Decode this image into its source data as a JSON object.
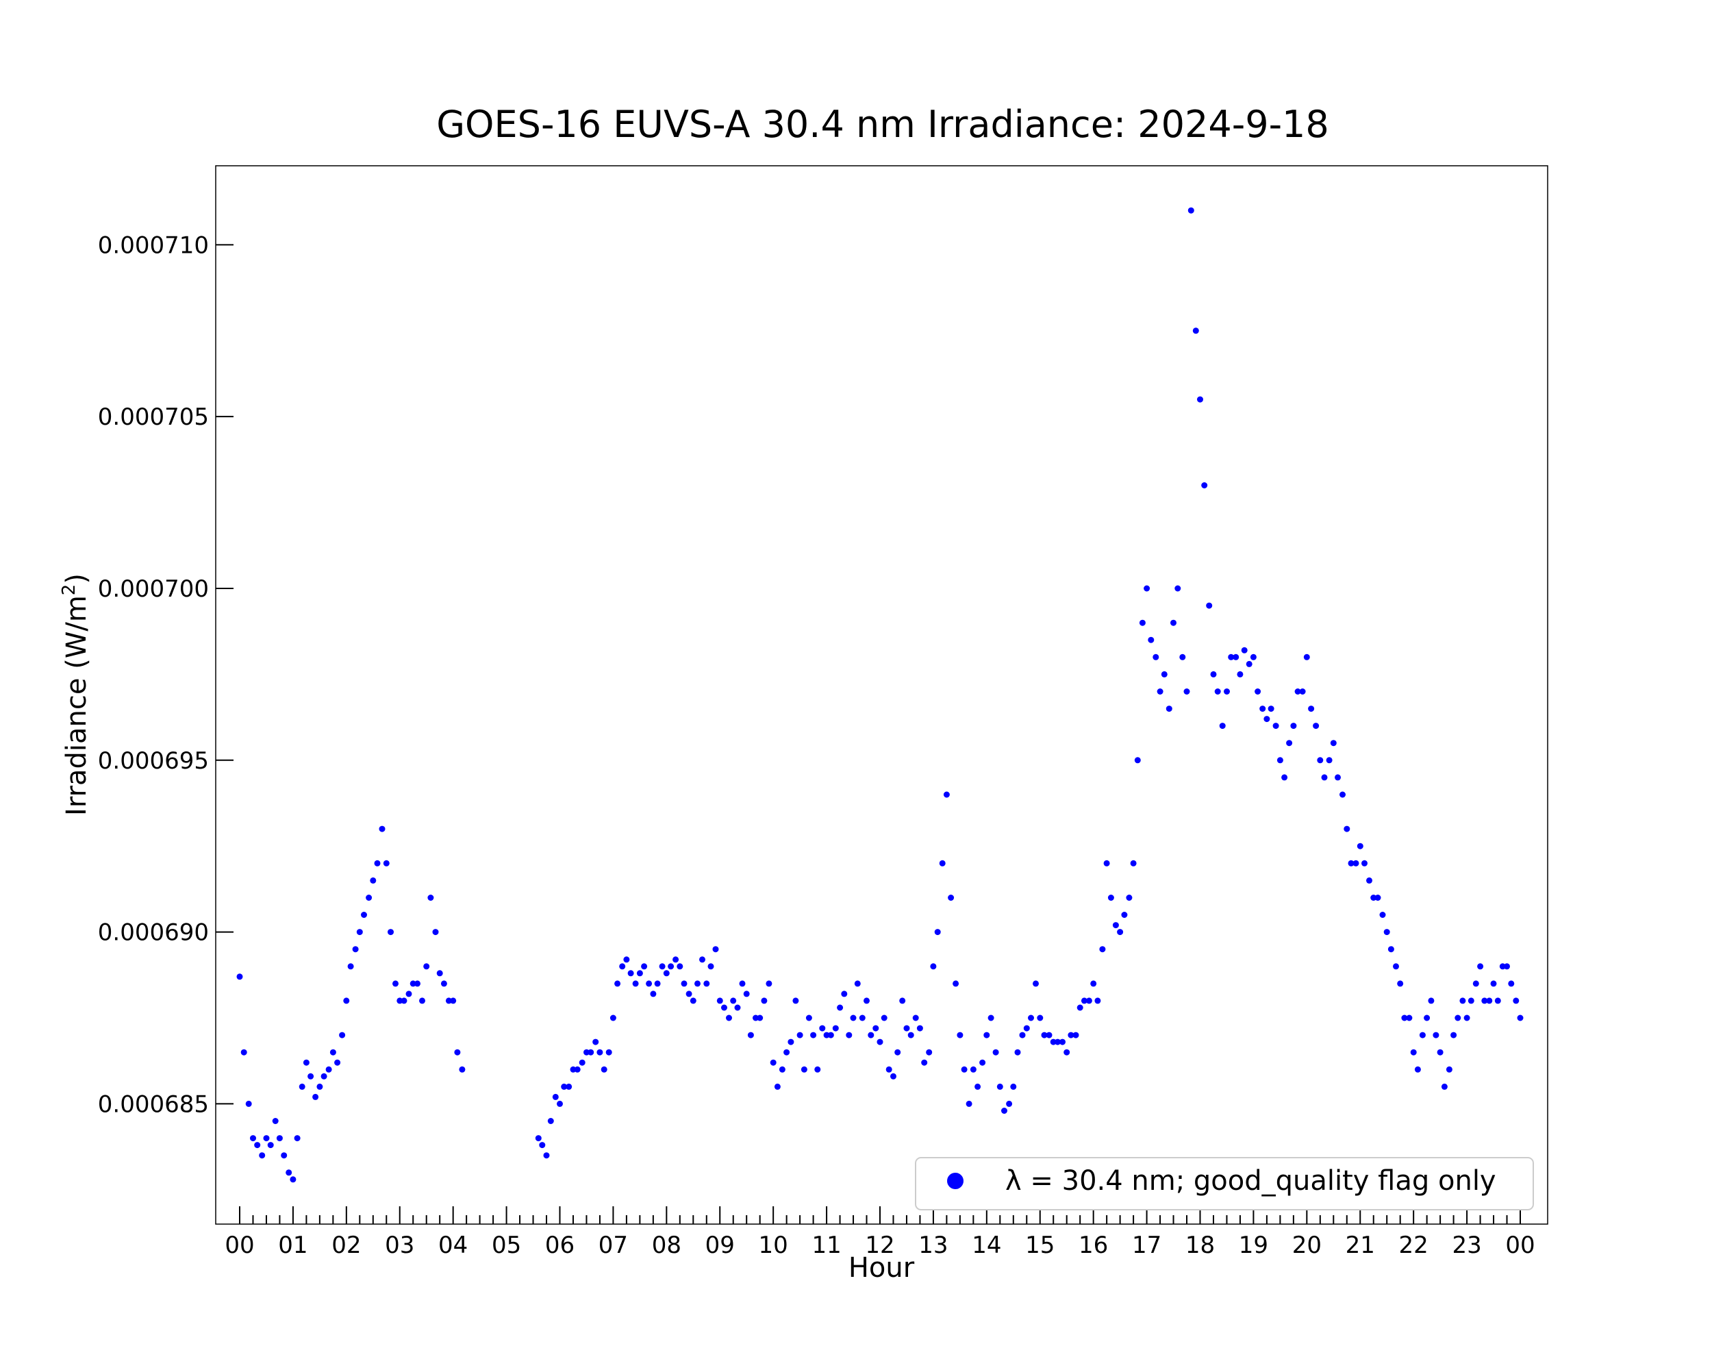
{
  "chart_data": {
    "type": "scatter",
    "title": "GOES-16 EUVS-A 30.4 nm Irradiance: 2024-9-18",
    "xlabel": "Hour",
    "ylabel": "Irradiance (W/m",
    "ylabel_sup": "2",
    "ylabel_close": ")",
    "xlim": [
      0,
      24
    ],
    "ylim": [
      0.0006815,
      0.0007123
    ],
    "x_ticks": [
      0,
      1,
      2,
      3,
      4,
      5,
      6,
      7,
      8,
      9,
      10,
      11,
      12,
      13,
      14,
      15,
      16,
      17,
      18,
      19,
      20,
      21,
      22,
      23,
      24
    ],
    "x_tick_labels": [
      "00",
      "01",
      "02",
      "03",
      "04",
      "05",
      "06",
      "07",
      "08",
      "09",
      "10",
      "11",
      "12",
      "13",
      "14",
      "15",
      "16",
      "17",
      "18",
      "19",
      "20",
      "21",
      "22",
      "23",
      "00"
    ],
    "y_ticks": [
      0.000685,
      0.00069,
      0.000695,
      0.0007,
      0.000705,
      0.00071
    ],
    "y_tick_labels": [
      "0.000685",
      "0.000690",
      "0.000695",
      "0.000700",
      "0.000705",
      "0.000710"
    ],
    "grid": false,
    "legend_position": "lower-right",
    "series": [
      {
        "name": "λ = 30.4 nm; good_quality flag only",
        "color": "#0000ff",
        "marker": "circle",
        "x": [
          0.0,
          0.08,
          0.17,
          0.25,
          0.33,
          0.42,
          0.5,
          0.58,
          0.67,
          0.75,
          0.83,
          0.92,
          1.0,
          1.08,
          1.17,
          1.25,
          1.33,
          1.42,
          1.5,
          1.58,
          1.67,
          1.75,
          1.83,
          1.92,
          2.0,
          2.08,
          2.17,
          2.25,
          2.33,
          2.42,
          2.5,
          2.58,
          2.67,
          2.75,
          2.83,
          2.92,
          3.0,
          3.08,
          3.17,
          3.25,
          3.33,
          3.42,
          3.5,
          3.58,
          3.67,
          3.75,
          3.83,
          3.92,
          4.0,
          4.08,
          4.17,
          5.6,
          5.67,
          5.75,
          5.83,
          5.92,
          6.0,
          6.08,
          6.17,
          6.25,
          6.33,
          6.42,
          6.5,
          6.58,
          6.67,
          6.75,
          6.83,
          6.92,
          7.0,
          7.08,
          7.17,
          7.25,
          7.33,
          7.42,
          7.5,
          7.58,
          7.67,
          7.75,
          7.83,
          7.92,
          8.0,
          8.08,
          8.17,
          8.25,
          8.33,
          8.42,
          8.5,
          8.58,
          8.67,
          8.75,
          8.83,
          8.92,
          9.0,
          9.08,
          9.17,
          9.25,
          9.33,
          9.42,
          9.5,
          9.58,
          9.67,
          9.75,
          9.83,
          9.92,
          10.0,
          10.08,
          10.17,
          10.25,
          10.33,
          10.42,
          10.5,
          10.58,
          10.67,
          10.75,
          10.83,
          10.92,
          11.0,
          11.08,
          11.17,
          11.25,
          11.33,
          11.42,
          11.5,
          11.58,
          11.67,
          11.75,
          11.83,
          11.92,
          12.0,
          12.08,
          12.17,
          12.25,
          12.33,
          12.42,
          12.5,
          12.58,
          12.67,
          12.75,
          12.83,
          12.92,
          13.0,
          13.08,
          13.17,
          13.25,
          13.33,
          13.42,
          13.5,
          13.58,
          13.67,
          13.75,
          13.83,
          13.92,
          14.0,
          14.08,
          14.17,
          14.25,
          14.33,
          14.42,
          14.5,
          14.58,
          14.67,
          14.75,
          14.83,
          14.92,
          15.0,
          15.08,
          15.17,
          15.25,
          15.33,
          15.42,
          15.5,
          15.58,
          15.67,
          15.75,
          15.83,
          15.92,
          16.0,
          16.08,
          16.17,
          16.25,
          16.33,
          16.42,
          16.5,
          16.58,
          16.67,
          16.75,
          16.83,
          16.92,
          17.0,
          17.08,
          17.17,
          17.25,
          17.33,
          17.42,
          17.5,
          17.58,
          17.67,
          17.75,
          17.83,
          17.92,
          18.0,
          18.08,
          18.17,
          18.25,
          18.33,
          18.42,
          18.5,
          18.58,
          18.67,
          18.75,
          18.83,
          18.92,
          19.0,
          19.08,
          19.17,
          19.25,
          19.33,
          19.42,
          19.5,
          19.58,
          19.67,
          19.75,
          19.83,
          19.92,
          20.0,
          20.08,
          20.17,
          20.25,
          20.33,
          20.42,
          20.5,
          20.58,
          20.67,
          20.75,
          20.83,
          20.92,
          21.0,
          21.08,
          21.17,
          21.25,
          21.33,
          21.42,
          21.5,
          21.58,
          21.67,
          21.75,
          21.83,
          21.92,
          22.0,
          22.08,
          22.17,
          22.25,
          22.33,
          22.42,
          22.5,
          22.58,
          22.67,
          22.75,
          22.83,
          22.92,
          23.0,
          23.08,
          23.17,
          23.25,
          23.33,
          23.42,
          23.5,
          23.58,
          23.67,
          23.75,
          23.83,
          23.92,
          24.0
        ],
        "y": [
          0.0006887,
          0.0006865,
          0.000685,
          0.000684,
          0.0006838,
          0.0006835,
          0.000684,
          0.0006838,
          0.0006845,
          0.000684,
          0.0006835,
          0.000683,
          0.0006828,
          0.000684,
          0.0006855,
          0.0006862,
          0.0006858,
          0.0006852,
          0.0006855,
          0.0006858,
          0.000686,
          0.0006865,
          0.0006862,
          0.000687,
          0.000688,
          0.000689,
          0.0006895,
          0.00069,
          0.0006905,
          0.000691,
          0.0006915,
          0.000692,
          0.000693,
          0.000692,
          0.00069,
          0.0006885,
          0.000688,
          0.000688,
          0.0006882,
          0.0006885,
          0.0006885,
          0.000688,
          0.000689,
          0.000691,
          0.00069,
          0.0006888,
          0.0006885,
          0.000688,
          0.000688,
          0.0006865,
          0.000686,
          0.000684,
          0.0006838,
          0.0006835,
          0.0006845,
          0.0006852,
          0.000685,
          0.0006855,
          0.0006855,
          0.000686,
          0.000686,
          0.0006862,
          0.0006865,
          0.0006865,
          0.0006868,
          0.0006865,
          0.000686,
          0.0006865,
          0.0006875,
          0.0006885,
          0.000689,
          0.0006892,
          0.0006888,
          0.0006885,
          0.0006888,
          0.000689,
          0.0006885,
          0.0006882,
          0.0006885,
          0.000689,
          0.0006888,
          0.000689,
          0.0006892,
          0.000689,
          0.0006885,
          0.0006882,
          0.000688,
          0.0006885,
          0.0006892,
          0.0006885,
          0.000689,
          0.0006895,
          0.000688,
          0.0006878,
          0.0006875,
          0.000688,
          0.0006878,
          0.0006885,
          0.0006882,
          0.000687,
          0.0006875,
          0.0006875,
          0.000688,
          0.0006885,
          0.0006862,
          0.0006855,
          0.000686,
          0.0006865,
          0.0006868,
          0.000688,
          0.000687,
          0.000686,
          0.0006875,
          0.000687,
          0.000686,
          0.0006872,
          0.000687,
          0.000687,
          0.0006872,
          0.0006878,
          0.0006882,
          0.000687,
          0.0006875,
          0.0006885,
          0.0006875,
          0.000688,
          0.000687,
          0.0006872,
          0.0006868,
          0.0006875,
          0.000686,
          0.0006858,
          0.0006865,
          0.000688,
          0.0006872,
          0.000687,
          0.0006875,
          0.0006872,
          0.0006862,
          0.0006865,
          0.000689,
          0.00069,
          0.000692,
          0.000694,
          0.000691,
          0.0006885,
          0.000687,
          0.000686,
          0.000685,
          0.000686,
          0.0006855,
          0.0006862,
          0.000687,
          0.0006875,
          0.0006865,
          0.0006855,
          0.0006848,
          0.000685,
          0.0006855,
          0.0006865,
          0.000687,
          0.0006872,
          0.0006875,
          0.0006885,
          0.0006875,
          0.000687,
          0.000687,
          0.0006868,
          0.0006868,
          0.0006868,
          0.0006865,
          0.000687,
          0.000687,
          0.0006878,
          0.000688,
          0.000688,
          0.0006885,
          0.000688,
          0.0006895,
          0.000692,
          0.000691,
          0.0006902,
          0.00069,
          0.0006905,
          0.000691,
          0.000692,
          0.000695,
          0.000699,
          0.0007,
          0.0006985,
          0.000698,
          0.000697,
          0.0006975,
          0.0006965,
          0.000699,
          0.0007,
          0.000698,
          0.000697,
          0.000711,
          0.0007075,
          0.0007055,
          0.000703,
          0.0006995,
          0.0006975,
          0.000697,
          0.000696,
          0.000697,
          0.000698,
          0.000698,
          0.0006975,
          0.0006982,
          0.0006978,
          0.000698,
          0.000697,
          0.0006965,
          0.0006962,
          0.0006965,
          0.000696,
          0.000695,
          0.0006945,
          0.0006955,
          0.000696,
          0.000697,
          0.000697,
          0.000698,
          0.0006965,
          0.000696,
          0.000695,
          0.0006945,
          0.000695,
          0.0006955,
          0.0006945,
          0.000694,
          0.000693,
          0.000692,
          0.000692,
          0.0006925,
          0.000692,
          0.0006915,
          0.000691,
          0.000691,
          0.0006905,
          0.00069,
          0.0006895,
          0.000689,
          0.0006885,
          0.0006875,
          0.0006875,
          0.0006865,
          0.000686,
          0.000687,
          0.0006875,
          0.000688,
          0.000687,
          0.0006865,
          0.0006855,
          0.000686,
          0.000687,
          0.0006875,
          0.000688,
          0.0006875,
          0.000688,
          0.0006885,
          0.000689,
          0.000688,
          0.000688,
          0.0006885,
          0.000688,
          0.000689,
          0.000689,
          0.0006885,
          0.000688,
          0.0006875
        ]
      }
    ]
  }
}
